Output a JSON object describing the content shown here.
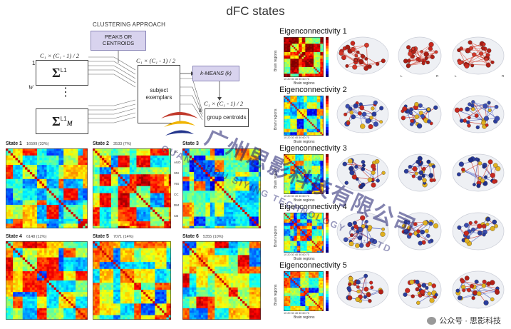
{
  "title": "dFC states",
  "diagram": {
    "clustering_label": "CLUSTERING APPROACH",
    "peaks_box": "PEAKS OR CENTROIDS",
    "kmeans_label": "k-MEANS (k)",
    "subject_box": "subject exemplars",
    "group_box": "group centroids",
    "formula": "C_1 × (C_1 - 1)/2",
    "formula_text": "C₁ × (C₁ - 1) / 2",
    "sigma_top_sup": "L1",
    "sigma_bottom_sup": "L1",
    "sigma_bottom_sub": "M",
    "one_label": "1",
    "w_label": "W",
    "k_label": "k",
    "ellipsis": "⋮"
  },
  "states": [
    {
      "label": "State 1",
      "count": "16599 (33%)"
    },
    {
      "label": "State 2",
      "count": "3533 (7%)"
    },
    {
      "label": "State 3",
      "count": ""
    },
    {
      "label": "State 4",
      "count": "6148 (12%)"
    },
    {
      "label": "State 5",
      "count": "7071 (14%)"
    },
    {
      "label": "State 6",
      "count": "5355 (10%)"
    }
  ],
  "state3_axis": [
    "SC",
    "AUD",
    "SM",
    "VIS",
    "CC",
    "DM",
    "CB"
  ],
  "state3_bottom_axis": [
    "SC",
    "AUD",
    "SM",
    "VIS",
    "CC",
    "DM",
    "CB"
  ],
  "eigen": [
    {
      "title": "Eigenconnectivity 1"
    },
    {
      "title": "Eigenconnectivity 2"
    },
    {
      "title": "Eigenconnectivity 3"
    },
    {
      "title": "Eigenconnectivity 4"
    },
    {
      "title": "Eigenconnectivity 5"
    }
  ],
  "eigen_axis": {
    "y": "Brain regions",
    "x": "Brain regions",
    "ticks": "10 20 30 40 50 60 70"
  },
  "brain_view_labels": [
    "L",
    "R",
    "L",
    "R"
  ],
  "watermark": {
    "cn": "广州思影科技有限公司",
    "en": "GUANGZHOU SIYING TECHNOLOGY CO.,LTD"
  },
  "footer": {
    "text": "公众号 · 思影科技"
  },
  "colors": {
    "purple_box": "#d8d3ee",
    "node_red": "#c8281e",
    "node_blue": "#2a3c9c",
    "node_yellow": "#e0b020"
  }
}
